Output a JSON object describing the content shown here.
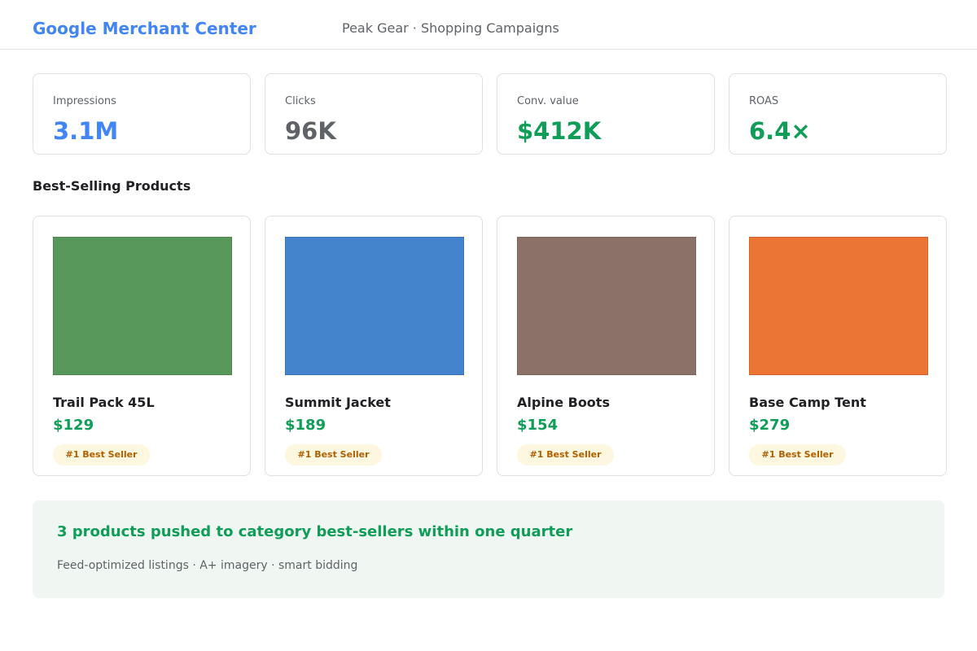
{
  "header": {
    "brand": "Google Merchant Center",
    "subtitle": "Peak Gear · Shopping Campaigns"
  },
  "kpis": [
    {
      "label": "Impressions",
      "value": "3.1M",
      "color": "#4285f4"
    },
    {
      "label": "Clicks",
      "value": "96K",
      "color": "#5f6368"
    },
    {
      "label": "Conv. value",
      "value": "$412K",
      "color": "#0f9d58"
    },
    {
      "label": "ROAS",
      "value": "6.4×",
      "color": "#0f9d58"
    }
  ],
  "section": {
    "title": "Best-Selling Products"
  },
  "products": [
    {
      "name": "Trail Pack 45L",
      "price": "$129",
      "badge": "#1 Best Seller",
      "image_color": "#58985a"
    },
    {
      "name": "Summit Jacket",
      "price": "$189",
      "badge": "#1 Best Seller",
      "image_color": "#4384cd"
    },
    {
      "name": "Alpine Boots",
      "price": "$154",
      "badge": "#1 Best Seller",
      "image_color": "#8c7168"
    },
    {
      "name": "Base Camp Tent",
      "price": "$279",
      "badge": "#1 Best Seller",
      "image_color": "#eb7534"
    }
  ],
  "banner": {
    "title": "3 products pushed to category best-sellers within one quarter",
    "subtitle": "Feed-optimized listings · A+ imagery · smart bidding"
  }
}
